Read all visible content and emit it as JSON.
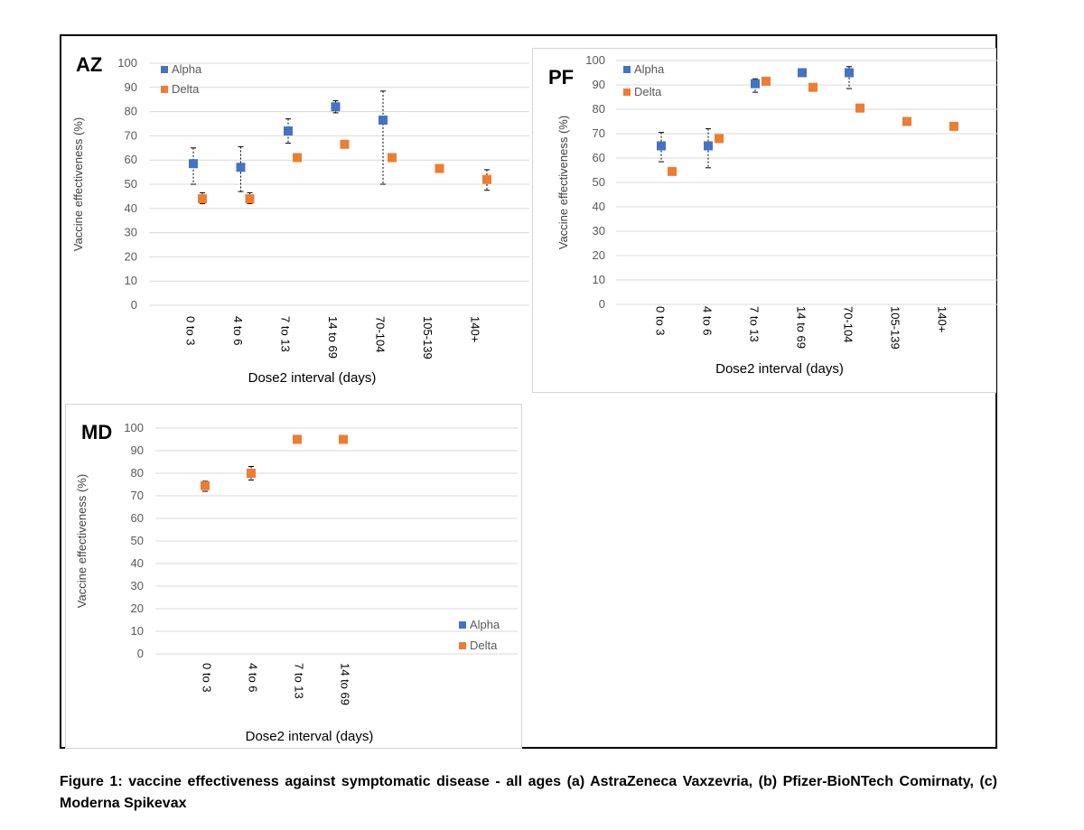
{
  "chart_data": [
    {
      "type": "scatter",
      "panel_label": "AZ",
      "xlabel": "Dose2 interval (days)",
      "ylabel": "Vaccine effectiveness (%)",
      "ylim": [
        0,
        100
      ],
      "yticks": [
        0,
        10,
        20,
        30,
        40,
        50,
        60,
        70,
        80,
        90,
        100
      ],
      "categories": [
        "0 to 3",
        "4 to 6",
        "7 to 13",
        "14 to 69",
        "70-104",
        "105-139",
        "140+"
      ],
      "grid": true,
      "legend": "top-left",
      "series": [
        {
          "name": "Alpha",
          "color": "#4472C4",
          "values": [
            58.5,
            57,
            72,
            82,
            76.5,
            null,
            null
          ],
          "lower": [
            50,
            47,
            67,
            79.5,
            50,
            null,
            null
          ],
          "upper": [
            65,
            65.5,
            77,
            84.5,
            88.5,
            null,
            null
          ]
        },
        {
          "name": "Delta",
          "color": "#ED7D31",
          "values": [
            44,
            44,
            61,
            66.5,
            61,
            56.5,
            52
          ],
          "lower": [
            42,
            42,
            null,
            null,
            null,
            null,
            47.5
          ],
          "upper": [
            46.5,
            46.5,
            null,
            null,
            null,
            null,
            56
          ]
        }
      ]
    },
    {
      "type": "scatter",
      "panel_label": "PF",
      "xlabel": "Dose2 interval (days)",
      "ylabel": "Vaccine effectiveness (%)",
      "ylim": [
        0,
        100
      ],
      "yticks": [
        0,
        10,
        20,
        30,
        40,
        50,
        60,
        70,
        80,
        90,
        100
      ],
      "categories": [
        "0 to 3",
        "4 to 6",
        "7 to 13",
        "14 to 69",
        "70-104",
        "105-139",
        "140+"
      ],
      "grid": true,
      "legend": "top-left",
      "series": [
        {
          "name": "Alpha",
          "color": "#4472C4",
          "values": [
            65,
            65,
            90.5,
            95,
            95,
            null,
            null
          ],
          "lower": [
            58.5,
            56,
            87,
            null,
            88.5,
            null,
            null
          ],
          "upper": [
            70.5,
            72,
            92.5,
            null,
            97.5,
            null,
            null
          ]
        },
        {
          "name": "Delta",
          "color": "#ED7D31",
          "values": [
            54.5,
            68,
            91.5,
            89,
            80.5,
            75,
            73
          ],
          "lower": [
            null,
            null,
            null,
            null,
            null,
            null,
            null
          ],
          "upper": [
            null,
            null,
            null,
            null,
            null,
            null,
            null
          ]
        }
      ]
    },
    {
      "type": "scatter",
      "panel_label": "MD",
      "xlabel": "Dose2 interval (days)",
      "ylabel": "Vaccine effectiveness (%)",
      "ylim": [
        0,
        100
      ],
      "yticks": [
        0,
        10,
        20,
        30,
        40,
        50,
        60,
        70,
        80,
        90,
        100
      ],
      "categories": [
        "0 to 3",
        "4 to 6",
        "7 to 13",
        "14 to 69"
      ],
      "grid": true,
      "legend": "bottom-right",
      "series": [
        {
          "name": "Alpha",
          "color": "#4472C4",
          "values": [
            null,
            null,
            null,
            null
          ],
          "lower": [
            null,
            null,
            null,
            null
          ],
          "upper": [
            null,
            null,
            null,
            null
          ]
        },
        {
          "name": "Delta",
          "color": "#ED7D31",
          "values": [
            74.5,
            80,
            95,
            95
          ],
          "lower": [
            72,
            77,
            null,
            null
          ],
          "upper": [
            76.5,
            83,
            null,
            null
          ]
        }
      ]
    }
  ],
  "caption": "Figure 1: vaccine effectiveness against symptomatic disease - all ages (a) AstraZeneca Vaxzevria, (b) Pfizer-BioNTech Comirnaty, (c) Moderna Spikevax"
}
